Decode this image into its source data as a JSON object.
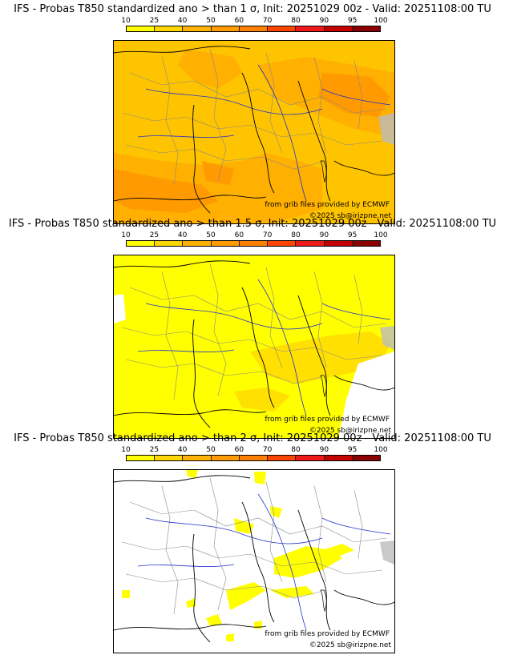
{
  "colorbar": {
    "ticks": [
      "10",
      "25",
      "40",
      "50",
      "60",
      "70",
      "80",
      "90",
      "95",
      "100"
    ],
    "colors": [
      "#ffff00",
      "#ffd700",
      "#ffb300",
      "#ff9a00",
      "#ff7f00",
      "#ff4500",
      "#ee1a1a",
      "#c40000",
      "#8b0000",
      "#4d0000"
    ]
  },
  "panels": [
    {
      "title": "IFS - Probas T850  standardized ano > than 1 σ, Init: 20251029 00z - Valid: 20251108:00 TU",
      "credit": "from grib files provided by ECMWF",
      "copyright": "©2025 sb@irizpne.net",
      "base_color": "#ffc400"
    },
    {
      "title": "IFS - Probas T850  standardized ano > than 1.5 σ, Init: 20251029 00z - Valid: 20251108:00 TU",
      "credit": "from grib files provided by ECMWF",
      "copyright": "©2025 sb@irizpne.net",
      "base_color": "#ffff00"
    },
    {
      "title": "IFS - Probas T850  standardized ano > than 2 σ, Init: 20251029 00z - Valid: 20251108:00 TU",
      "credit": "from grib files provided by ECMWF",
      "copyright": "©2025 sb@irizpne.net",
      "base_color": "#ffffff"
    }
  ]
}
